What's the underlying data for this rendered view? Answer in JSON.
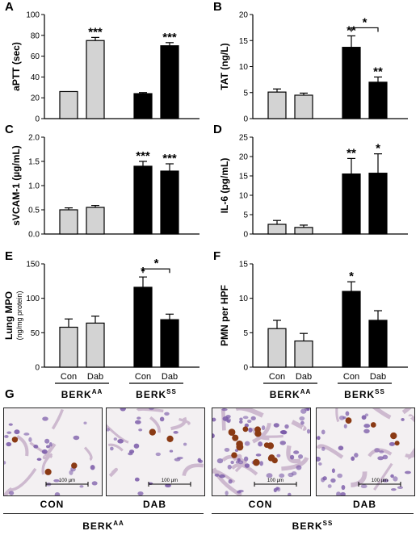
{
  "panel_letters": [
    "A",
    "B",
    "C",
    "D",
    "E",
    "F",
    "G"
  ],
  "colors": {
    "con_bar": "#d3d3d3",
    "dab_bar": "#000000",
    "outline": "#000000",
    "stain_brown": "#8a3a14",
    "nuclei_purple": "#7a5aa8",
    "tissue_bg": "#f3f0f2"
  },
  "x_axis": {
    "treatments": [
      "Con",
      "Dab",
      "Con",
      "Dab"
    ],
    "groups": [
      {
        "base": "BERK",
        "sup": "AA"
      },
      {
        "base": "BERK",
        "sup": "SS"
      }
    ]
  },
  "chart_data": [
    {
      "letter": "A",
      "type": "bar",
      "ylabel": "aPTT (sec)",
      "ylim": [
        0,
        100
      ],
      "yticks": [
        "0",
        "20",
        "40",
        "60",
        "80",
        "100"
      ],
      "categories": [
        "BERK AA Con",
        "BERK AA Dab",
        "BERK SS Con",
        "BERK SS Dab"
      ],
      "values": [
        26,
        75,
        24,
        70
      ],
      "errors": [
        0,
        3,
        1,
        3
      ],
      "significance": [
        "",
        "***",
        "",
        "***"
      ],
      "brackets": []
    },
    {
      "letter": "B",
      "type": "bar",
      "ylabel": "TAT (ng/L)",
      "ylim": [
        0,
        20
      ],
      "yticks": [
        "0",
        "5",
        "10",
        "15",
        "20"
      ],
      "categories": [
        "BERK AA Con",
        "BERK AA Dab",
        "BERK SS Con",
        "BERK SS Dab"
      ],
      "values": [
        5.1,
        4.5,
        13.7,
        7.0
      ],
      "errors": [
        0.6,
        0.4,
        2.2,
        1.0
      ],
      "significance": [
        "",
        "",
        "**",
        "**"
      ],
      "brackets": [
        {
          "from": 2,
          "to": 3,
          "label": "*"
        }
      ]
    },
    {
      "letter": "C",
      "type": "bar",
      "ylabel": "sVCAM-1 (µg/mL)",
      "ylim": [
        0,
        2.0
      ],
      "yticks": [
        "0.0",
        "0.5",
        "1.0",
        "1.5",
        "2.0"
      ],
      "categories": [
        "BERK AA Con",
        "BERK AA Dab",
        "BERK SS Con",
        "BERK SS Dab"
      ],
      "values": [
        0.5,
        0.55,
        1.4,
        1.3
      ],
      "errors": [
        0.04,
        0.04,
        0.1,
        0.15
      ],
      "significance": [
        "",
        "",
        "***",
        "***"
      ],
      "brackets": []
    },
    {
      "letter": "D",
      "type": "bar",
      "ylabel": "IL-6 (pg/mL)",
      "ylim": [
        0,
        25
      ],
      "yticks": [
        "0",
        "5",
        "10",
        "15",
        "20",
        "25"
      ],
      "categories": [
        "BERK AA Con",
        "BERK AA Dab",
        "BERK SS Con",
        "BERK SS Dab"
      ],
      "values": [
        2.5,
        1.7,
        15.5,
        15.7
      ],
      "errors": [
        1.0,
        0.6,
        4.0,
        5.0
      ],
      "significance": [
        "",
        "",
        "**",
        "*"
      ],
      "brackets": []
    },
    {
      "letter": "E",
      "type": "bar",
      "ylabel": "Lung MPO",
      "ylabel2": "(ng/mg protein)",
      "ylim": [
        0,
        150
      ],
      "yticks": [
        "0",
        "50",
        "100",
        "150"
      ],
      "categories": [
        "BERK AA Con",
        "BERK AA Dab",
        "BERK SS Con",
        "BERK SS Dab"
      ],
      "values": [
        58,
        64,
        116,
        69
      ],
      "errors": [
        12,
        10,
        15,
        8
      ],
      "significance": [
        "",
        "",
        "*",
        ""
      ],
      "brackets": [
        {
          "from": 2,
          "to": 3,
          "label": "*"
        }
      ]
    },
    {
      "letter": "F",
      "type": "bar",
      "ylabel": "PMN per HPF",
      "ylim": [
        0,
        15
      ],
      "yticks": [
        "0",
        "5",
        "10",
        "15"
      ],
      "categories": [
        "BERK AA Con",
        "BERK AA Dab",
        "BERK SS Con",
        "BERK SS Dab"
      ],
      "values": [
        5.6,
        3.8,
        11.0,
        6.8
      ],
      "errors": [
        1.2,
        1.1,
        1.4,
        1.4
      ],
      "significance": [
        "",
        "",
        "*",
        ""
      ],
      "brackets": []
    }
  ],
  "micrographs": {
    "scale_bar_label": "100 µm",
    "panels": [
      {
        "label": "CON",
        "neutrophils": 3,
        "density": "low"
      },
      {
        "label": "DAB",
        "neutrophils": 2,
        "density": "low"
      },
      {
        "label": "CON",
        "neutrophils": 14,
        "density": "high"
      },
      {
        "label": "DAB",
        "neutrophils": 4,
        "density": "medium"
      }
    ],
    "groups": [
      {
        "base": "BERK",
        "sup": "AA"
      },
      {
        "base": "BERK",
        "sup": "SS"
      }
    ]
  }
}
